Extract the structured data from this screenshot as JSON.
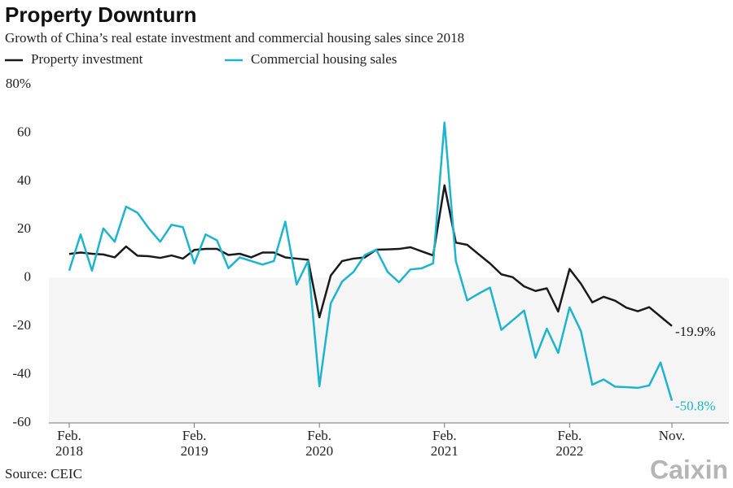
{
  "chart_data": {
    "type": "line",
    "title": "Property Downturn",
    "subtitle": "Growth of China’s real estate investment and commercial housing sales since 2018",
    "source": "Source: CEIC",
    "logo": "Caixin",
    "categories": [
      "Feb.\n2018",
      null,
      null,
      null,
      null,
      null,
      null,
      null,
      null,
      null,
      null,
      "Feb.\n2019",
      null,
      null,
      null,
      null,
      null,
      null,
      null,
      null,
      null,
      null,
      "Feb.\n2020",
      null,
      null,
      null,
      null,
      null,
      null,
      null,
      null,
      null,
      null,
      "Feb.\n2021",
      null,
      null,
      null,
      null,
      null,
      null,
      null,
      null,
      null,
      null,
      "Feb.\n2022",
      null,
      null,
      null,
      null,
      null,
      null,
      null,
      null,
      "Nov."
    ],
    "series": [
      {
        "name": "Property investment",
        "color": "#1a1a1a",
        "end_label": "-19.9%",
        "values": [
          9.9,
          10.5,
          10,
          9.7,
          8.5,
          13,
          9.2,
          9,
          8.3,
          9.3,
          8,
          11.6,
          12,
          12,
          9.5,
          10,
          8.5,
          10.5,
          10.5,
          8.5,
          8,
          7.5,
          -16.3,
          1,
          7,
          8,
          8.5,
          11.7,
          11.8,
          12,
          12.7,
          11,
          9.3,
          38.3,
          14.6,
          13.7,
          9.8,
          6,
          1.5,
          0.3,
          -3.5,
          -5.4,
          -4.3,
          -13.9,
          3.7,
          -2.4,
          -10.1,
          -7.8,
          -9.4,
          -12.3,
          -13.8,
          -12.1,
          -16,
          -19.9
        ]
      },
      {
        "name": "Commercial housing sales",
        "color": "#1eb4cf",
        "end_label": "-50.8%",
        "values": [
          3,
          18,
          3,
          20.5,
          15,
          29.5,
          27,
          20.5,
          15,
          22,
          21,
          6,
          18,
          15.5,
          4,
          8.5,
          7,
          5.5,
          7,
          23.3,
          -2.7,
          7,
          -44.8,
          -10.5,
          -1.5,
          2.5,
          9.5,
          11.7,
          2.5,
          -1.8,
          3.5,
          4,
          6,
          64.3,
          7,
          -9.3,
          -6.5,
          -4,
          -21.5,
          -17.5,
          -13.5,
          -33,
          -21,
          -31,
          -12.2,
          -22,
          -44.2,
          -42,
          -45,
          -45.2,
          -45.5,
          -44.5,
          -35,
          -50.8
        ]
      }
    ],
    "ylim": [
      -60,
      80
    ],
    "yticks": [
      -60,
      -40,
      -20,
      0,
      20,
      40,
      60,
      {
        "value": 80,
        "label": "80%"
      }
    ],
    "negative_shading": true,
    "grid": false
  }
}
